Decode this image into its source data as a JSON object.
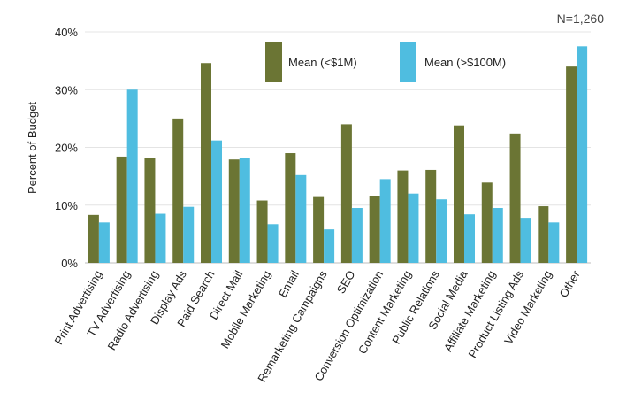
{
  "chart_data": {
    "type": "bar",
    "note": "N=1,260",
    "ylabel": "Percent of Budget",
    "ylim": [
      0,
      40
    ],
    "yticks": [
      0,
      10,
      20,
      30,
      40
    ],
    "ytick_labels": [
      "0%",
      "10%",
      "20%",
      "30%",
      "40%"
    ],
    "grid": true,
    "legend_position": "top-center",
    "categories": [
      "Print Advertising",
      "TV Advertising",
      "Radio Advertising",
      "Display Ads",
      "Paid Search",
      "Direct Mail",
      "Mobile Marketing",
      "Email",
      "Remarketing Campaigns",
      "SEO",
      "Conversion Optimization",
      "Content Marketing",
      "Public Relations",
      "Social Media",
      "Affiliate Marketing",
      "Product Listing Ads",
      "Video Marketing",
      "Other"
    ],
    "series": [
      {
        "name": "Mean (<$1M)",
        "color": "#6b7534",
        "values": [
          8.3,
          18.4,
          18.1,
          25.0,
          34.6,
          17.9,
          10.8,
          19.0,
          11.4,
          24.0,
          11.5,
          16.0,
          16.1,
          23.8,
          13.9,
          22.4,
          9.8,
          34.0
        ]
      },
      {
        "name": "Mean (>$100M)",
        "color": "#4fbde0",
        "values": [
          7.0,
          30.0,
          8.5,
          9.7,
          21.2,
          18.1,
          6.7,
          15.2,
          5.8,
          9.5,
          14.5,
          12.0,
          11.0,
          8.4,
          9.5,
          7.8,
          7.0,
          37.5
        ]
      }
    ]
  }
}
